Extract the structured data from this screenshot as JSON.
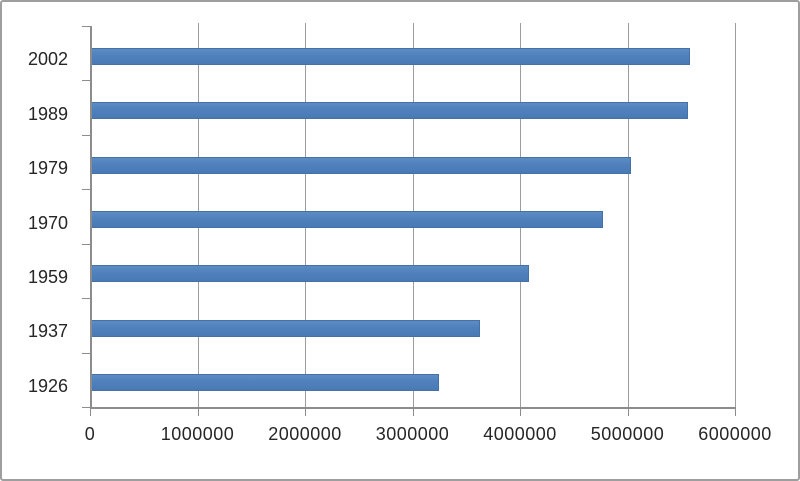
{
  "chart_data": {
    "type": "bar",
    "orientation": "horizontal",
    "title": "",
    "xlabel": "",
    "ylabel": "",
    "categories": [
      "2002",
      "1989",
      "1979",
      "1970",
      "1959",
      "1937",
      "1926"
    ],
    "values": [
      5570000,
      5550000,
      5020000,
      4760000,
      4070000,
      3620000,
      3240000
    ],
    "series": [
      {
        "name": "",
        "values": [
          5570000,
          5550000,
          5020000,
          4760000,
          4070000,
          3620000,
          3240000
        ]
      }
    ],
    "xlim": [
      0,
      6000000
    ],
    "x_ticks": [
      0,
      1000000,
      2000000,
      3000000,
      4000000,
      5000000,
      6000000
    ],
    "x_tick_labels": [
      "0",
      "1000000",
      "2000000",
      "3000000",
      "4000000",
      "5000000",
      "6000000"
    ],
    "grid": "vertical-gridlines-on",
    "legend": "none",
    "colors": {
      "bar": "#4f81bd",
      "bar_border": "#4472a8",
      "gridline": "#9c9c9c",
      "axis": "#8c8c8c",
      "text": "#262626",
      "background": "#ffffff",
      "frame_border": "#9e9e9e"
    }
  }
}
